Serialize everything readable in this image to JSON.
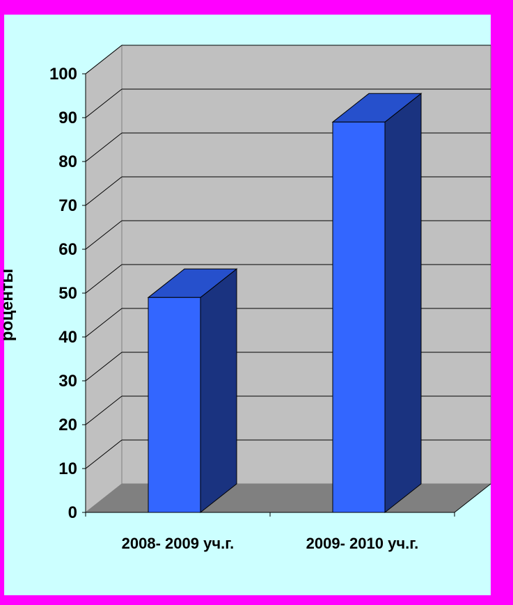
{
  "colors": {
    "frame": "#ff00ff",
    "panel": "#ccffff",
    "wall": "#c0c0c0",
    "side_wall": "#c0c0c0",
    "floor": "#808080",
    "bar_front": "#3366ff",
    "bar_top": "#2650cc",
    "bar_side": "#1a3380"
  },
  "chart_data": {
    "type": "bar",
    "style": "3d-column",
    "categories": [
      "2008- 2009 уч.г.",
      "2009- 2010 уч.г."
    ],
    "values": [
      49,
      89
    ],
    "ylabel": "роценты",
    "ylim": [
      0,
      100
    ],
    "yticks": [
      "0",
      "10",
      "20",
      "30",
      "40",
      "50",
      "60",
      "70",
      "80",
      "90",
      "100"
    ],
    "grid": true
  }
}
